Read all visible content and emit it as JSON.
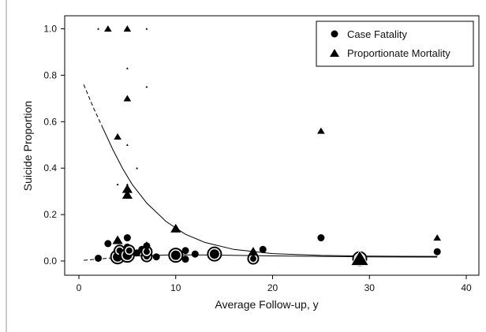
{
  "chart_data": {
    "type": "scatter",
    "xlabel": "Average Follow-up, y",
    "ylabel": "Suicide Proportion",
    "xlim": [
      -1,
      41
    ],
    "ylim": [
      -0.05,
      1.02
    ],
    "x_ticks": [
      "0",
      "10",
      "20",
      "30",
      "40"
    ],
    "x_tick_values": [
      0,
      10,
      20,
      30,
      40
    ],
    "y_ticks": [
      "0.0",
      "0.2",
      "0.4",
      "0.6",
      "0.8",
      "1.0"
    ],
    "y_tick_values": [
      0,
      0.2,
      0.4,
      0.6,
      0.8,
      1.0
    ],
    "legend_position": "top-right",
    "grid": false,
    "series": [
      {
        "name": "Case Fatality",
        "marker": "circle",
        "points": [
          {
            "x": 2.0,
            "y": 0.012,
            "w": 1
          },
          {
            "x": 3.0,
            "y": 0.075,
            "w": 1
          },
          {
            "x": 4.0,
            "y": 0.018,
            "w": 3
          },
          {
            "x": 4.2,
            "y": 0.045,
            "w": 2
          },
          {
            "x": 4.5,
            "y": 0.03,
            "w": 1
          },
          {
            "x": 5.0,
            "y": 0.1,
            "w": 1
          },
          {
            "x": 5.0,
            "y": 0.06,
            "w": 1
          },
          {
            "x": 5.0,
            "y": 0.025,
            "w": 3
          },
          {
            "x": 5.2,
            "y": 0.045,
            "w": 2
          },
          {
            "x": 6.0,
            "y": 0.035,
            "w": 1
          },
          {
            "x": 6.5,
            "y": 0.05,
            "w": 1
          },
          {
            "x": 7.0,
            "y": 0.02,
            "w": 2
          },
          {
            "x": 7.0,
            "y": 0.04,
            "w": 2
          },
          {
            "x": 7.0,
            "y": 0.065,
            "w": 1
          },
          {
            "x": 8.0,
            "y": 0.018,
            "w": 1
          },
          {
            "x": 10.0,
            "y": 0.025,
            "w": 3
          },
          {
            "x": 11.0,
            "y": 0.045,
            "w": 1
          },
          {
            "x": 11.0,
            "y": 0.008,
            "w": 1
          },
          {
            "x": 12.0,
            "y": 0.03,
            "w": 1
          },
          {
            "x": 14.0,
            "y": 0.03,
            "w": 3
          },
          {
            "x": 18.0,
            "y": 0.01,
            "w": 2
          },
          {
            "x": 19.0,
            "y": 0.05,
            "w": 1
          },
          {
            "x": 25.0,
            "y": 0.1,
            "w": 1
          },
          {
            "x": 29.0,
            "y": 0.01,
            "w": 3
          },
          {
            "x": 37.0,
            "y": 0.04,
            "w": 1
          }
        ],
        "fit": [
          {
            "x": 0.5,
            "y": 0.003
          },
          {
            "x": 3,
            "y": 0.012
          },
          {
            "x": 6,
            "y": 0.022
          },
          {
            "x": 10,
            "y": 0.027
          },
          {
            "x": 15,
            "y": 0.025
          },
          {
            "x": 20,
            "y": 0.022
          },
          {
            "x": 25,
            "y": 0.02
          },
          {
            "x": 30,
            "y": 0.018
          },
          {
            "x": 37,
            "y": 0.017
          }
        ],
        "fit_dashed_until": 5
      },
      {
        "name": "Proportionate Mortality",
        "marker": "triangle",
        "points": [
          {
            "x": 2.0,
            "y": 1.0,
            "w": 0
          },
          {
            "x": 3.0,
            "y": 1.0,
            "w": 1
          },
          {
            "x": 5.0,
            "y": 1.0,
            "w": 1
          },
          {
            "x": 7.0,
            "y": 1.0,
            "w": 0
          },
          {
            "x": 5.0,
            "y": 0.83,
            "w": 0
          },
          {
            "x": 7.0,
            "y": 0.75,
            "w": 0
          },
          {
            "x": 5.0,
            "y": 0.7,
            "w": 1
          },
          {
            "x": 4.0,
            "y": 0.535,
            "w": 1
          },
          {
            "x": 5.0,
            "y": 0.5,
            "w": 0
          },
          {
            "x": 6.0,
            "y": 0.4,
            "w": 0
          },
          {
            "x": 4.0,
            "y": 0.33,
            "w": 0
          },
          {
            "x": 5.0,
            "y": 0.33,
            "w": 0
          },
          {
            "x": 5.0,
            "y": 0.31,
            "w": 2
          },
          {
            "x": 5.0,
            "y": 0.285,
            "w": 2
          },
          {
            "x": 4.0,
            "y": 0.09,
            "w": 2
          },
          {
            "x": 7.0,
            "y": 0.07,
            "w": 1
          },
          {
            "x": 10.0,
            "y": 0.14,
            "w": 2
          },
          {
            "x": 18.0,
            "y": 0.04,
            "w": 2
          },
          {
            "x": 25.0,
            "y": 0.56,
            "w": 1
          },
          {
            "x": 29.0,
            "y": 0.01,
            "w": 4
          },
          {
            "x": 37.0,
            "y": 0.1,
            "w": 1
          }
        ],
        "fit": [
          {
            "x": 0.5,
            "y": 0.76
          },
          {
            "x": 1.5,
            "y": 0.66
          },
          {
            "x": 2.5,
            "y": 0.57
          },
          {
            "x": 3.5,
            "y": 0.48
          },
          {
            "x": 4.5,
            "y": 0.4
          },
          {
            "x": 5.5,
            "y": 0.33
          },
          {
            "x": 7,
            "y": 0.25
          },
          {
            "x": 9,
            "y": 0.17
          },
          {
            "x": 11,
            "y": 0.115
          },
          {
            "x": 13,
            "y": 0.08
          },
          {
            "x": 16,
            "y": 0.05
          },
          {
            "x": 20,
            "y": 0.032
          },
          {
            "x": 25,
            "y": 0.024
          },
          {
            "x": 30,
            "y": 0.021
          },
          {
            "x": 37,
            "y": 0.02
          }
        ],
        "fit_dashed_until": 2
      }
    ]
  }
}
